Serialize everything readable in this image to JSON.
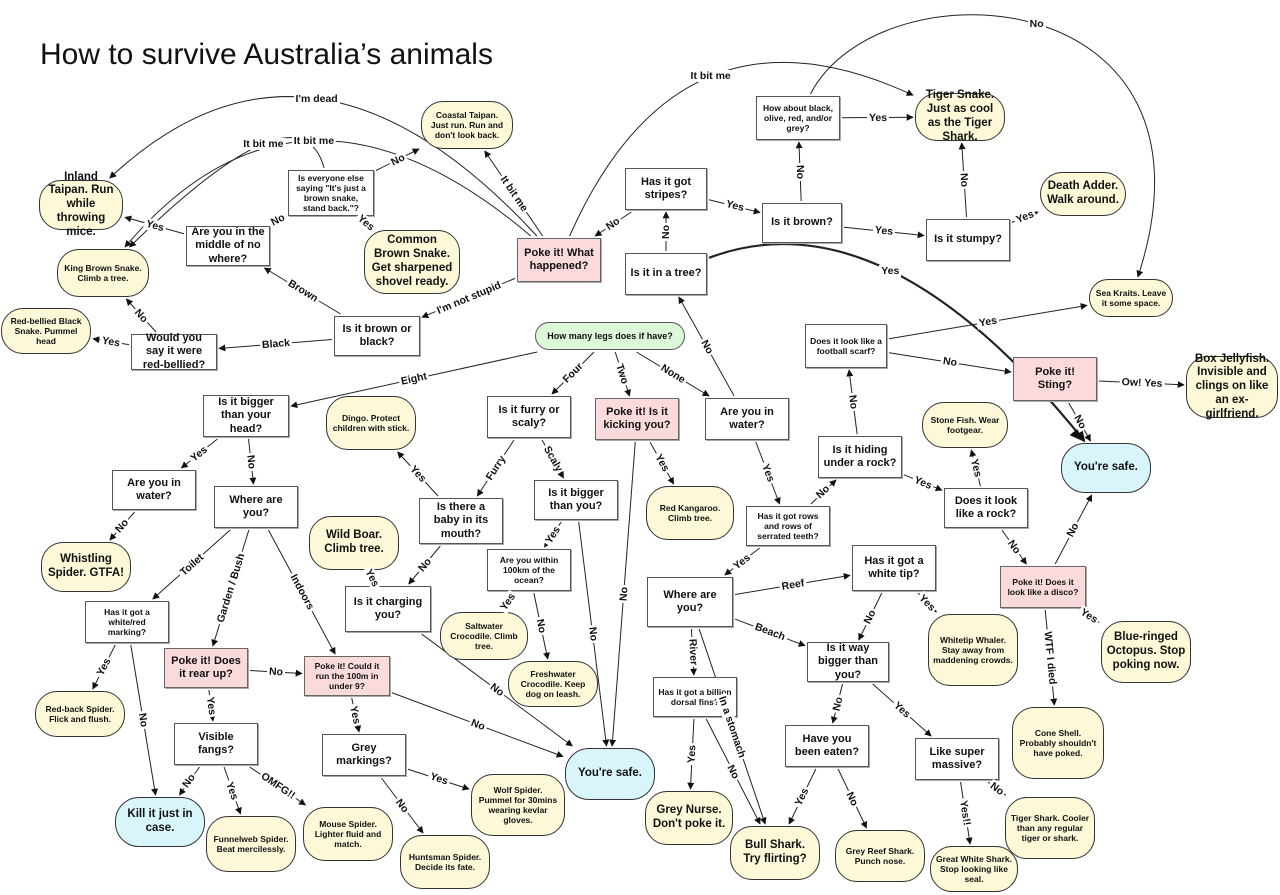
{
  "title": "How to survive Australia’s animals",
  "colors": {
    "question": "#ffffff",
    "poke": "#fadada",
    "answer": "#fcf8d8",
    "safe": "#d8f5fb",
    "start": "#dbf8d8"
  },
  "nodes": [
    {
      "id": "legs",
      "kind": "start",
      "text": "How many legs does if have?"
    },
    {
      "id": "brownblack",
      "kind": "question",
      "text": "Is it brown or black?"
    },
    {
      "id": "redbellied",
      "kind": "question",
      "text": "Would you say it were red-bellied?"
    },
    {
      "id": "rbblack",
      "kind": "answer",
      "text": "Red-bellied Black Snake. Pummel head"
    },
    {
      "id": "kingbrown",
      "kind": "answer",
      "text": "King Brown Snake. Climb a tree."
    },
    {
      "id": "inland",
      "kind": "answer",
      "text": "Inland Taipan. Run while throwing mice."
    },
    {
      "id": "middle",
      "kind": "question",
      "text": "Are you in the middle of no where?"
    },
    {
      "id": "everyone",
      "kind": "question",
      "text": "Is everyone else saying \"It's just a brown snake, stand back.\"?"
    },
    {
      "id": "commonbrown",
      "kind": "answer",
      "text": "Common Brown Snake. Get sharpened shovel ready."
    },
    {
      "id": "coastal",
      "kind": "answer",
      "text": "Coastal Taipan. Just run. Run and don't look back."
    },
    {
      "id": "pokewhat",
      "kind": "poke",
      "text": "Poke it! What happened?"
    },
    {
      "id": "stripes",
      "kind": "question",
      "text": "Has it got stripes?"
    },
    {
      "id": "tree",
      "kind": "question",
      "text": "Is it in a tree?"
    },
    {
      "id": "brown",
      "kind": "question",
      "text": "Is it brown?"
    },
    {
      "id": "olive",
      "kind": "question",
      "text": "How about black, olive, red, and/or grey?"
    },
    {
      "id": "tigersnake",
      "kind": "answer",
      "text": "Tiger Snake. Just as cool as the Tiger Shark."
    },
    {
      "id": "stumpy",
      "kind": "question",
      "text": "Is it stumpy?"
    },
    {
      "id": "deathadder",
      "kind": "answer",
      "text": "Death Adder. Walk around."
    },
    {
      "id": "seakraits",
      "kind": "answer",
      "text": "Sea Kraits. Leave it some space."
    },
    {
      "id": "scarf",
      "kind": "question",
      "text": "Does it look like a football scarf?"
    },
    {
      "id": "sting",
      "kind": "poke",
      "text": "Poke it! Sting?"
    },
    {
      "id": "boxjelly",
      "kind": "answer",
      "text": "Box Jellyfish. Invisible and clings on like an ex-girlfriend."
    },
    {
      "id": "saferight",
      "kind": "safe",
      "text": "You're safe."
    },
    {
      "id": "stonefish",
      "kind": "answer",
      "text": "Stone Fish. Wear footgear."
    },
    {
      "id": "hiding",
      "kind": "question",
      "text": "Is it hiding under a rock?"
    },
    {
      "id": "rock",
      "kind": "question",
      "text": "Does it look like a rock?"
    },
    {
      "id": "disco",
      "kind": "poke",
      "text": "Poke it! Does it look like a disco?"
    },
    {
      "id": "blueringed",
      "kind": "answer",
      "text": "Blue-ringed Octopus. Stop poking now."
    },
    {
      "id": "coneshell",
      "kind": "answer",
      "text": "Cone Shell. Probably shouldn't have poked."
    },
    {
      "id": "watermid",
      "kind": "question",
      "text": "Are you in water?"
    },
    {
      "id": "kicking",
      "kind": "poke",
      "text": "Poke it! Is it kicking you?"
    },
    {
      "id": "kangaroo",
      "kind": "answer",
      "text": "Red Kangaroo. Climb tree."
    },
    {
      "id": "teeth",
      "kind": "question",
      "text": "Has it got rows and rows of serrated teeth?"
    },
    {
      "id": "seawhere",
      "kind": "question",
      "text": "Where are you?"
    },
    {
      "id": "whitetip",
      "kind": "question",
      "text": "Has it got a white tip?"
    },
    {
      "id": "whaler",
      "kind": "answer",
      "text": "Whitetip Whaler. Stay away from maddening crowds."
    },
    {
      "id": "waybigger",
      "kind": "question",
      "text": "Is it way bigger than you?"
    },
    {
      "id": "dorsal",
      "kind": "question",
      "text": "Has it got a billion dorsal fins?"
    },
    {
      "id": "greynurse",
      "kind": "answer",
      "text": "Grey Nurse. Don't poke it."
    },
    {
      "id": "bullshark",
      "kind": "answer",
      "text": "Bull Shark. Try flirting?"
    },
    {
      "id": "eaten",
      "kind": "question",
      "text": "Have you been eaten?"
    },
    {
      "id": "greyreef",
      "kind": "answer",
      "text": "Grey Reef Shark. Punch nose."
    },
    {
      "id": "massive",
      "kind": "question",
      "text": "Like super massive?"
    },
    {
      "id": "greatwhite",
      "kind": "answer",
      "text": "Great White Shark. Stop looking like seal."
    },
    {
      "id": "tigershark",
      "kind": "answer",
      "text": "Tiger Shark. Cooler than any regular tiger or shark."
    },
    {
      "id": "bighead",
      "kind": "question",
      "text": "Is it bigger than your head?"
    },
    {
      "id": "waterleft",
      "kind": "question",
      "text": "Are you in water?"
    },
    {
      "id": "whistling",
      "kind": "answer",
      "text": "Whistling Spider. GTFA!"
    },
    {
      "id": "whereland",
      "kind": "question",
      "text": "Where are you?"
    },
    {
      "id": "marking",
      "kind": "question",
      "text": "Has it got a white/red marking?"
    },
    {
      "id": "redback",
      "kind": "answer",
      "text": "Red-back Spider. Flick and flush."
    },
    {
      "id": "kill",
      "kind": "safe",
      "text": "Kill it just in case."
    },
    {
      "id": "rearup",
      "kind": "poke",
      "text": "Poke it! Does it rear up?"
    },
    {
      "id": "fangs",
      "kind": "question",
      "text": "Visible fangs?"
    },
    {
      "id": "funnelweb",
      "kind": "answer",
      "text": "Funnelweb Spider. Beat mercilessly."
    },
    {
      "id": "mouse",
      "kind": "answer",
      "text": "Mouse Spider. Lighter fluid and match."
    },
    {
      "id": "run100",
      "kind": "poke",
      "text": "Poke it! Could it run the 100m in under 9?"
    },
    {
      "id": "grey",
      "kind": "question",
      "text": "Grey markings?"
    },
    {
      "id": "huntsman",
      "kind": "answer",
      "text": "Huntsman Spider. Decide its fate."
    },
    {
      "id": "wolf",
      "kind": "answer",
      "text": "Wolf Spider. Pummel for 30mins wearing kevlar gloves."
    },
    {
      "id": "safecenter",
      "kind": "safe",
      "text": "You're safe."
    },
    {
      "id": "dingo",
      "kind": "answer",
      "text": "Dingo. Protect children with stick."
    },
    {
      "id": "boar",
      "kind": "answer",
      "text": "Wild Boar. Climb tree."
    },
    {
      "id": "baby",
      "kind": "question",
      "text": "Is there a baby in its mouth?"
    },
    {
      "id": "charging",
      "kind": "question",
      "text": "Is it charging you?"
    },
    {
      "id": "furry",
      "kind": "question",
      "text": "Is it furry or scaly?"
    },
    {
      "id": "bigyou",
      "kind": "question",
      "text": "Is it bigger than you?"
    },
    {
      "id": "within",
      "kind": "question",
      "text": "Are you within 100km of the ocean?"
    },
    {
      "id": "saltwater",
      "kind": "answer",
      "text": "Saltwater Crocodile. Climb tree."
    },
    {
      "id": "freshwater",
      "kind": "answer",
      "text": "Freshwater Crocodile. Keep dog on leash."
    }
  ],
  "edges": [
    {
      "from": "pokewhat",
      "to": "brownblack",
      "label": "I'm not stupid"
    },
    {
      "from": "brownblack",
      "to": "middle",
      "label": "Brown"
    },
    {
      "from": "brownblack",
      "to": "redbellied",
      "label": "Black"
    },
    {
      "from": "redbellied",
      "to": "rbblack",
      "label": "Yes"
    },
    {
      "from": "redbellied",
      "to": "kingbrown",
      "label": "No"
    },
    {
      "from": "middle",
      "to": "inland",
      "label": "Yes"
    },
    {
      "from": "middle",
      "to": "everyone",
      "label": "No"
    },
    {
      "from": "everyone",
      "to": "commonbrown",
      "label": "Yes"
    },
    {
      "from": "everyone",
      "to": "coastal",
      "label": "No"
    },
    {
      "from": "pokewhat",
      "to": "coastal",
      "label": "It bit me"
    },
    {
      "from": "pokewhat",
      "to": "inland",
      "label": "I'm dead"
    },
    {
      "from": "pokewhat",
      "to": "kingbrown",
      "label": "It bit me"
    },
    {
      "from": "everyone",
      "to": "kingbrown",
      "label": "It bit me"
    },
    {
      "from": "pokewhat",
      "to": "tigersnake",
      "label": "It bit me"
    },
    {
      "from": "stripes",
      "to": "pokewhat",
      "label": "No"
    },
    {
      "from": "tree",
      "to": "stripes",
      "label": "No"
    },
    {
      "from": "stripes",
      "to": "brown",
      "label": "Yes"
    },
    {
      "from": "brown",
      "to": "olive",
      "label": "No"
    },
    {
      "from": "olive",
      "to": "tigersnake",
      "label": "Yes"
    },
    {
      "from": "brown",
      "to": "stumpy",
      "label": "Yes"
    },
    {
      "from": "stumpy",
      "to": "tigersnake",
      "label": "No"
    },
    {
      "from": "stumpy",
      "to": "deathadder",
      "label": "Yes"
    },
    {
      "from": "olive",
      "to": "seakraits",
      "label": "No"
    },
    {
      "from": "tree",
      "to": "saferight",
      "label": "Yes"
    },
    {
      "from": "scarf",
      "to": "seakraits",
      "label": "Yes"
    },
    {
      "from": "scarf",
      "to": "sting",
      "label": "No"
    },
    {
      "from": "sting",
      "to": "boxjelly",
      "label": "Ow! Yes"
    },
    {
      "from": "sting",
      "to": "saferight",
      "label": "No"
    },
    {
      "from": "hiding",
      "to": "scarf",
      "label": "No"
    },
    {
      "from": "hiding",
      "to": "rock",
      "label": "Yes"
    },
    {
      "from": "rock",
      "to": "stonefish",
      "label": "Yes"
    },
    {
      "from": "rock",
      "to": "disco",
      "label": "No"
    },
    {
      "from": "disco",
      "to": "saferight",
      "label": "No"
    },
    {
      "from": "disco",
      "to": "blueringed",
      "label": "Yes"
    },
    {
      "from": "disco",
      "to": "coneshell",
      "label": "WTF I died"
    },
    {
      "from": "legs",
      "to": "bighead",
      "label": "Eight"
    },
    {
      "from": "legs",
      "to": "furry",
      "label": "Four"
    },
    {
      "from": "legs",
      "to": "kicking",
      "label": "Two"
    },
    {
      "from": "legs",
      "to": "watermid",
      "label": "None"
    },
    {
      "from": "watermid",
      "to": "tree",
      "label": "No"
    },
    {
      "from": "watermid",
      "to": "teeth",
      "label": "Yes"
    },
    {
      "from": "teeth",
      "to": "hiding",
      "label": "No"
    },
    {
      "from": "teeth",
      "to": "seawhere",
      "label": "Yes"
    },
    {
      "from": "kicking",
      "to": "kangaroo",
      "label": "Yes"
    },
    {
      "from": "kicking",
      "to": "safecenter",
      "label": "No"
    },
    {
      "from": "seawhere",
      "to": "whitetip",
      "label": "Reef"
    },
    {
      "from": "seawhere",
      "to": "waybigger",
      "label": "Beach"
    },
    {
      "from": "seawhere",
      "to": "dorsal",
      "label": "River"
    },
    {
      "from": "seawhere",
      "to": "bullshark",
      "label": "In a stomach"
    },
    {
      "from": "whitetip",
      "to": "whaler",
      "label": "Yes"
    },
    {
      "from": "whitetip",
      "to": "waybigger",
      "label": "No"
    },
    {
      "from": "waybigger",
      "to": "eaten",
      "label": "No"
    },
    {
      "from": "waybigger",
      "to": "massive",
      "label": "Yes"
    },
    {
      "from": "eaten",
      "to": "bullshark",
      "label": "Yes"
    },
    {
      "from": "eaten",
      "to": "greyreef",
      "label": "No"
    },
    {
      "from": "massive",
      "to": "greatwhite",
      "label": "Yes!!"
    },
    {
      "from": "massive",
      "to": "tigershark",
      "label": "No"
    },
    {
      "from": "dorsal",
      "to": "greynurse",
      "label": "Yes"
    },
    {
      "from": "dorsal",
      "to": "bullshark",
      "label": "No"
    },
    {
      "from": "bighead",
      "to": "waterleft",
      "label": "Yes"
    },
    {
      "from": "bighead",
      "to": "whereland",
      "label": "No"
    },
    {
      "from": "waterleft",
      "to": "whistling",
      "label": "No"
    },
    {
      "from": "whereland",
      "to": "marking",
      "label": "Toilet"
    },
    {
      "from": "whereland",
      "to": "rearup",
      "label": "Garden / Bush"
    },
    {
      "from": "whereland",
      "to": "run100",
      "label": "Indoors"
    },
    {
      "from": "marking",
      "to": "redback",
      "label": "Yes"
    },
    {
      "from": "marking",
      "to": "kill",
      "label": "No"
    },
    {
      "from": "rearup",
      "to": "run100",
      "label": "No"
    },
    {
      "from": "rearup",
      "to": "fangs",
      "label": "Yes"
    },
    {
      "from": "fangs",
      "to": "kill",
      "label": "No"
    },
    {
      "from": "fangs",
      "to": "funnelweb",
      "label": "Yes"
    },
    {
      "from": "fangs",
      "to": "mouse",
      "label": "OMFG!!"
    },
    {
      "from": "run100",
      "to": "grey",
      "label": "Yes"
    },
    {
      "from": "run100",
      "to": "safecenter",
      "label": "No"
    },
    {
      "from": "grey",
      "to": "wolf",
      "label": "Yes"
    },
    {
      "from": "grey",
      "to": "huntsman",
      "label": "No"
    },
    {
      "from": "furry",
      "to": "baby",
      "label": "Furry"
    },
    {
      "from": "furry",
      "to": "bigyou",
      "label": "Scaly"
    },
    {
      "from": "baby",
      "to": "dingo",
      "label": "Yes"
    },
    {
      "from": "baby",
      "to": "charging",
      "label": "No"
    },
    {
      "from": "charging",
      "to": "boar",
      "label": "Yes"
    },
    {
      "from": "charging",
      "to": "safecenter",
      "label": "No"
    },
    {
      "from": "bigyou",
      "to": "within",
      "label": "Yes"
    },
    {
      "from": "bigyou",
      "to": "safecenter",
      "label": "No"
    },
    {
      "from": "within",
      "to": "saltwater",
      "label": "Yes"
    },
    {
      "from": "within",
      "to": "freshwater",
      "label": "No"
    }
  ]
}
